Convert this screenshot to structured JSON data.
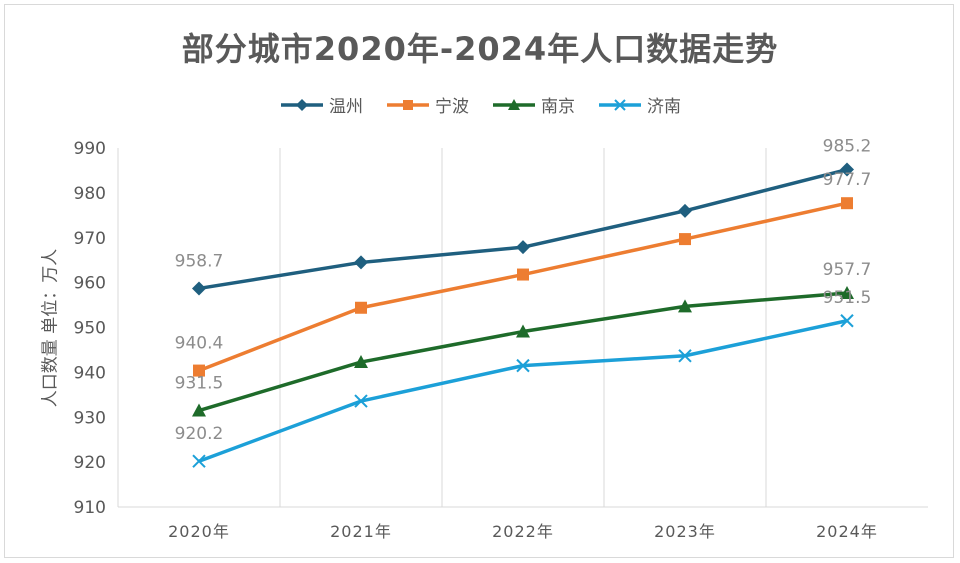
{
  "chart_data": {
    "type": "line",
    "title": "部分城市2020年-2024年人口数据走势",
    "ylabel": "人口数量 单位：万人",
    "xlabel": "",
    "categories": [
      "2020年",
      "2021年",
      "2022年",
      "2023年",
      "2024年"
    ],
    "ylim": [
      910,
      990
    ],
    "yticks": [
      910,
      920,
      930,
      940,
      950,
      960,
      970,
      980,
      990
    ],
    "grid": "vertical",
    "legend_position": "top",
    "series": [
      {
        "name": "温州",
        "values": [
          958.7,
          964.5,
          967.9,
          976.0,
          985.2
        ],
        "color": "#1f5f7f",
        "marker": "diamond"
      },
      {
        "name": "宁波",
        "values": [
          940.4,
          954.4,
          961.8,
          969.7,
          977.7
        ],
        "color": "#ed7d31",
        "marker": "square"
      },
      {
        "name": "南京",
        "values": [
          931.5,
          942.3,
          949.1,
          954.7,
          957.7
        ],
        "color": "#1e6b2a",
        "marker": "triangle"
      },
      {
        "name": "济南",
        "values": [
          920.2,
          933.6,
          941.5,
          943.7,
          951.5
        ],
        "color": "#1ca0d8",
        "marker": "x"
      }
    ],
    "data_labels": [
      {
        "series": 0,
        "index": 0,
        "text": "958.7"
      },
      {
        "series": 0,
        "index": 4,
        "text": "985.2"
      },
      {
        "series": 1,
        "index": 0,
        "text": "940.4"
      },
      {
        "series": 1,
        "index": 4,
        "text": "977.7"
      },
      {
        "series": 2,
        "index": 0,
        "text": "931.5"
      },
      {
        "series": 2,
        "index": 4,
        "text": "957.7"
      },
      {
        "series": 3,
        "index": 0,
        "text": "920.2"
      },
      {
        "series": 3,
        "index": 4,
        "text": "951.5"
      }
    ]
  }
}
